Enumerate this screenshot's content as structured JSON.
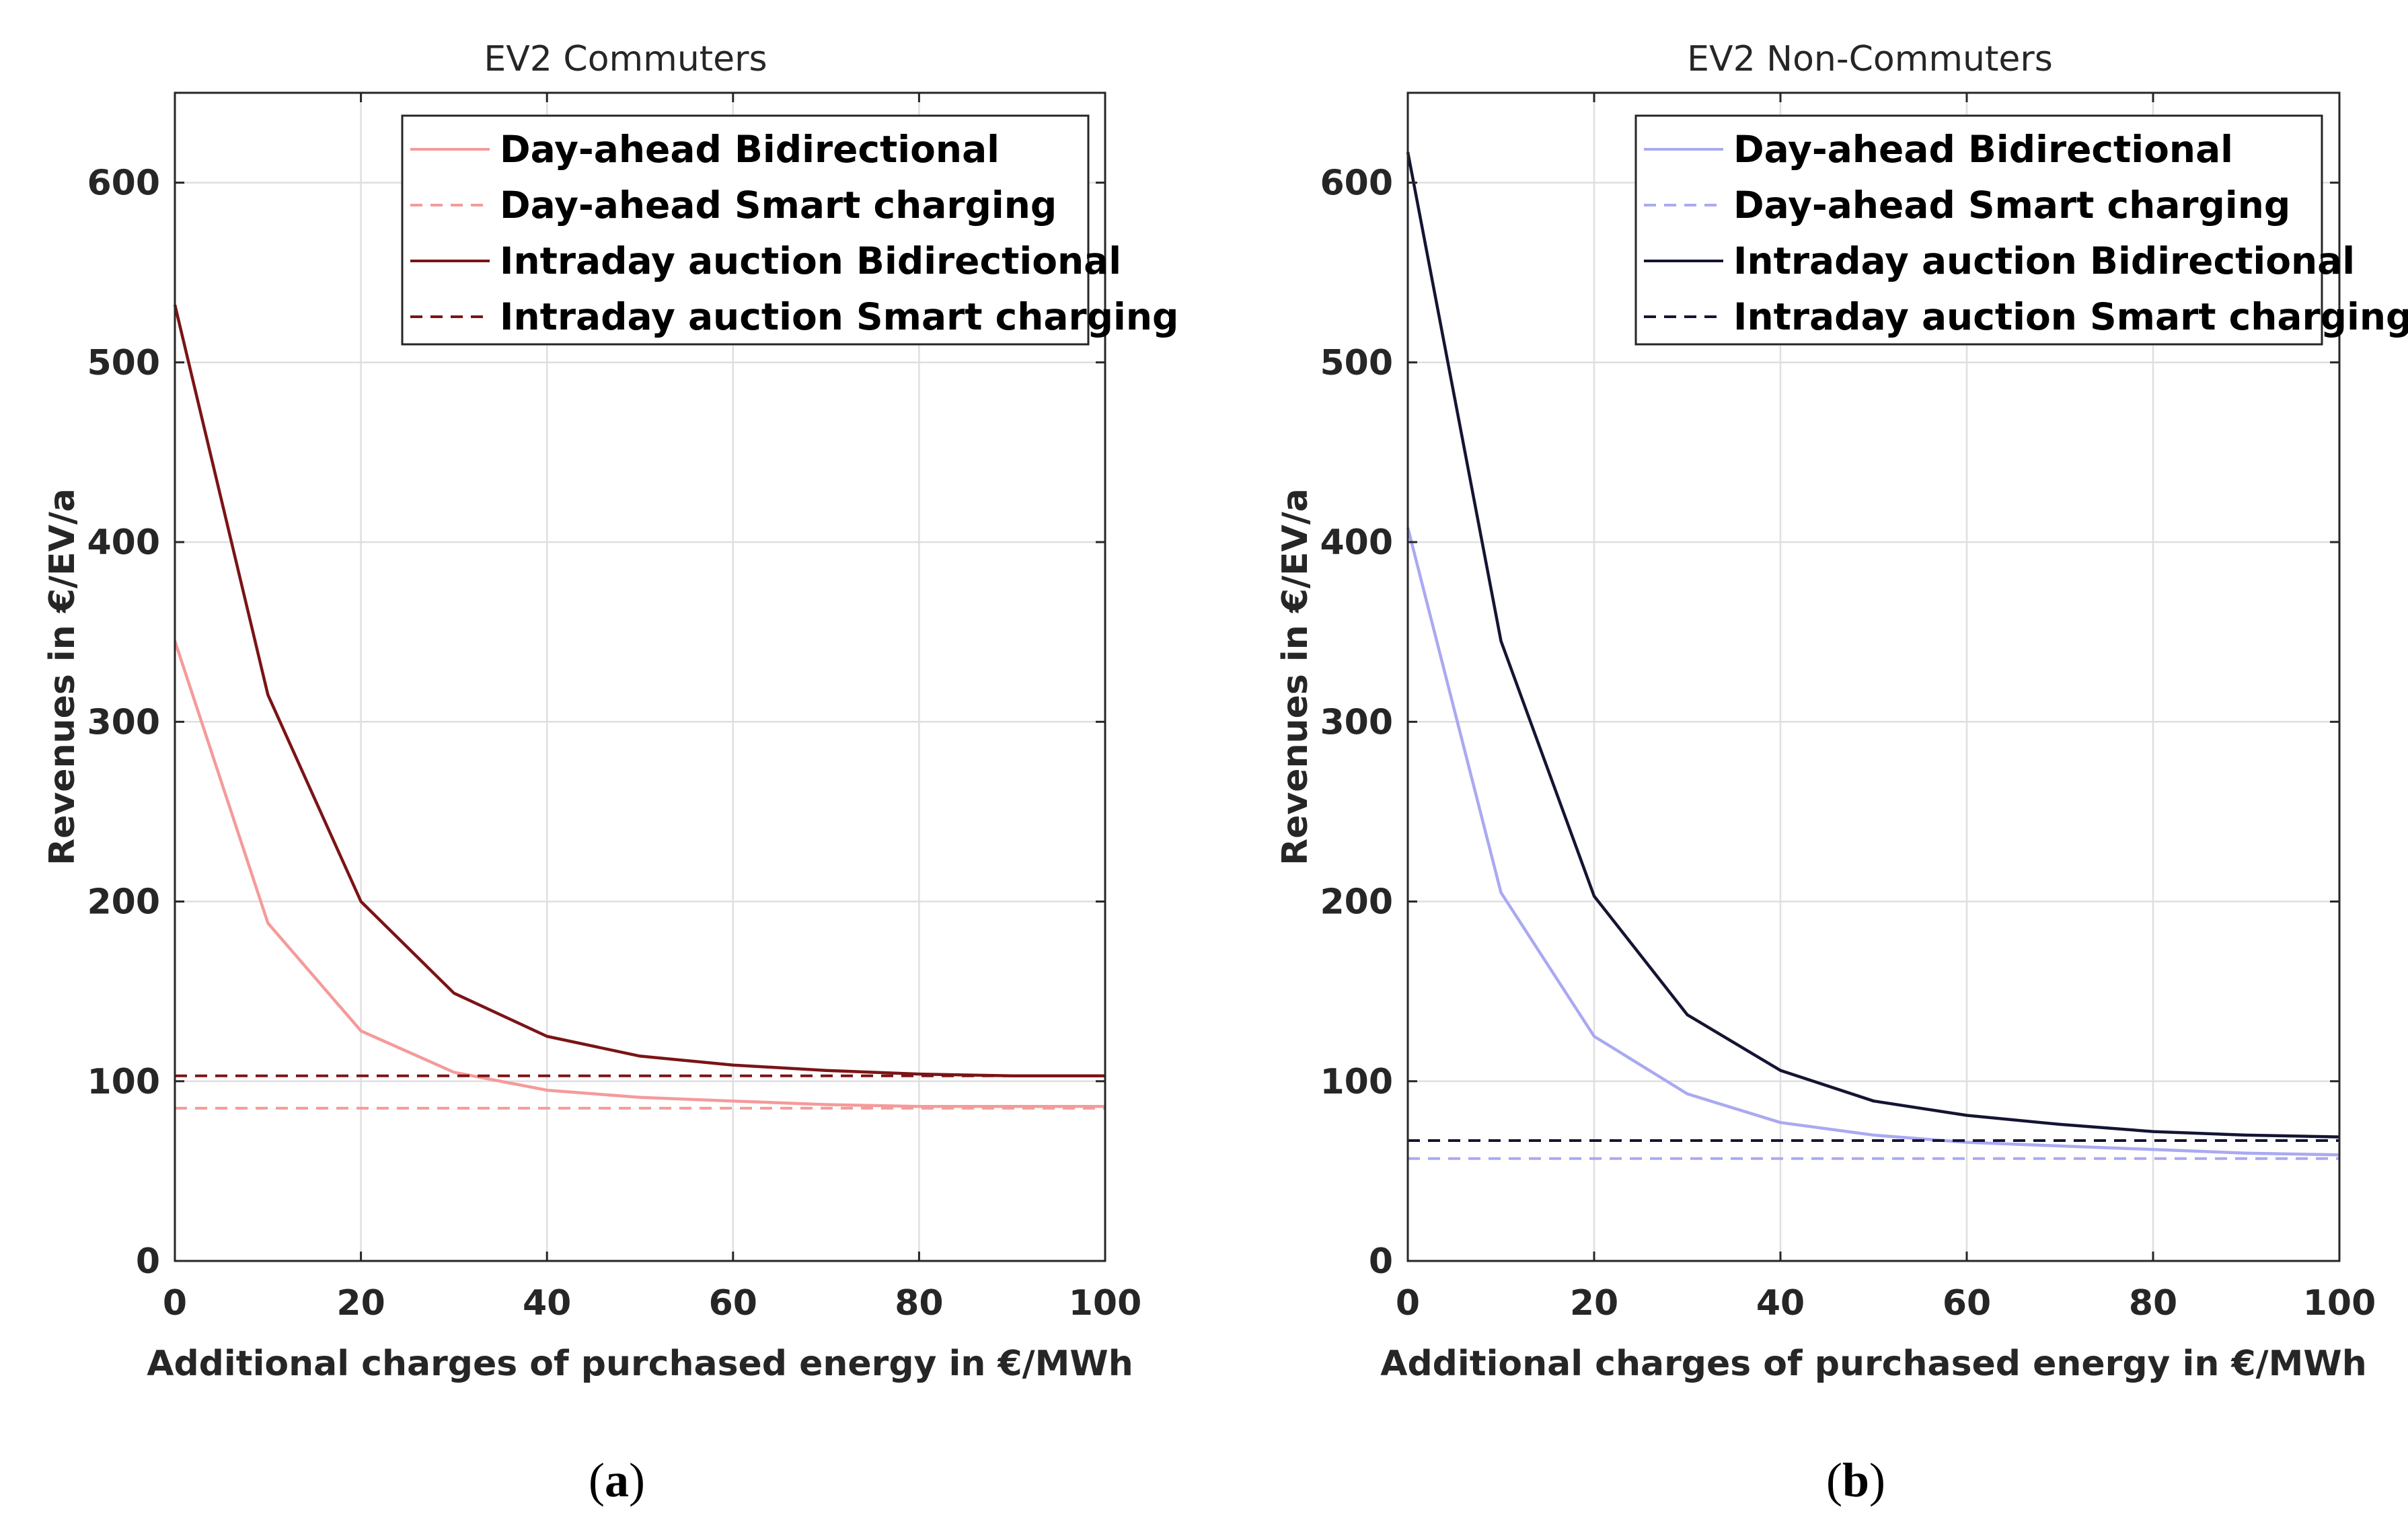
{
  "chart_data": [
    {
      "type": "line",
      "title": "EV2 Commuters",
      "caption_letter": "a",
      "xlabel": "Additional charges of purchased energy in €/MWh",
      "ylabel": "Revenues in €/EV/a",
      "xlim": [
        0,
        100
      ],
      "ylim": [
        0,
        650
      ],
      "xticks": [
        0,
        20,
        40,
        60,
        80,
        100
      ],
      "yticks": [
        0,
        100,
        200,
        300,
        400,
        500,
        600
      ],
      "grid": true,
      "legend_position": "top-right",
      "x": [
        0,
        10,
        20,
        30,
        40,
        50,
        60,
        70,
        80,
        90,
        100
      ],
      "series": [
        {
          "name": "Day-ahead Bidirectional",
          "color": "#f59a9a",
          "style": "solid",
          "values": [
            345,
            188,
            128,
            105,
            95,
            91,
            89,
            87,
            86,
            86,
            86
          ]
        },
        {
          "name": "Day-ahead Smart charging",
          "color": "#f59a9a",
          "style": "dashed",
          "values": [
            85,
            85,
            85,
            85,
            85,
            85,
            85,
            85,
            85,
            85,
            85
          ]
        },
        {
          "name": "Intraday auction Bidirectional",
          "color": "#7a1416",
          "style": "solid",
          "values": [
            532,
            315,
            200,
            149,
            125,
            114,
            109,
            106,
            104,
            103,
            103
          ]
        },
        {
          "name": "Intraday auction Smart charging",
          "color": "#7a1416",
          "style": "dashed",
          "values": [
            103,
            103,
            103,
            103,
            103,
            103,
            103,
            103,
            103,
            103,
            103
          ]
        }
      ]
    },
    {
      "type": "line",
      "title": "EV2 Non-Commuters",
      "caption_letter": "b",
      "xlabel": "Additional charges of purchased energy in €/MWh",
      "ylabel": "Revenues in €/EV/a",
      "xlim": [
        0,
        100
      ],
      "ylim": [
        0,
        650
      ],
      "xticks": [
        0,
        20,
        40,
        60,
        80,
        100
      ],
      "yticks": [
        0,
        100,
        200,
        300,
        400,
        500,
        600
      ],
      "grid": true,
      "legend_position": "top-right",
      "x": [
        0,
        10,
        20,
        30,
        40,
        50,
        60,
        70,
        80,
        90,
        100
      ],
      "series": [
        {
          "name": "Day-ahead Bidirectional",
          "color": "#a9a9f2",
          "style": "solid",
          "values": [
            408,
            205,
            125,
            93,
            77,
            70,
            66,
            64,
            62,
            60,
            59
          ]
        },
        {
          "name": "Day-ahead Smart charging",
          "color": "#a9a9f2",
          "style": "dashed",
          "values": [
            57,
            57,
            57,
            57,
            57,
            57,
            57,
            57,
            57,
            57,
            57
          ]
        },
        {
          "name": "Intraday auction Bidirectional",
          "color": "#141433",
          "style": "solid",
          "values": [
            617,
            345,
            203,
            137,
            106,
            89,
            81,
            76,
            72,
            70,
            69
          ]
        },
        {
          "name": "Intraday auction Smart charging",
          "color": "#141433",
          "style": "dashed",
          "values": [
            67,
            67,
            67,
            67,
            67,
            67,
            67,
            67,
            67,
            67,
            67
          ]
        }
      ]
    }
  ]
}
